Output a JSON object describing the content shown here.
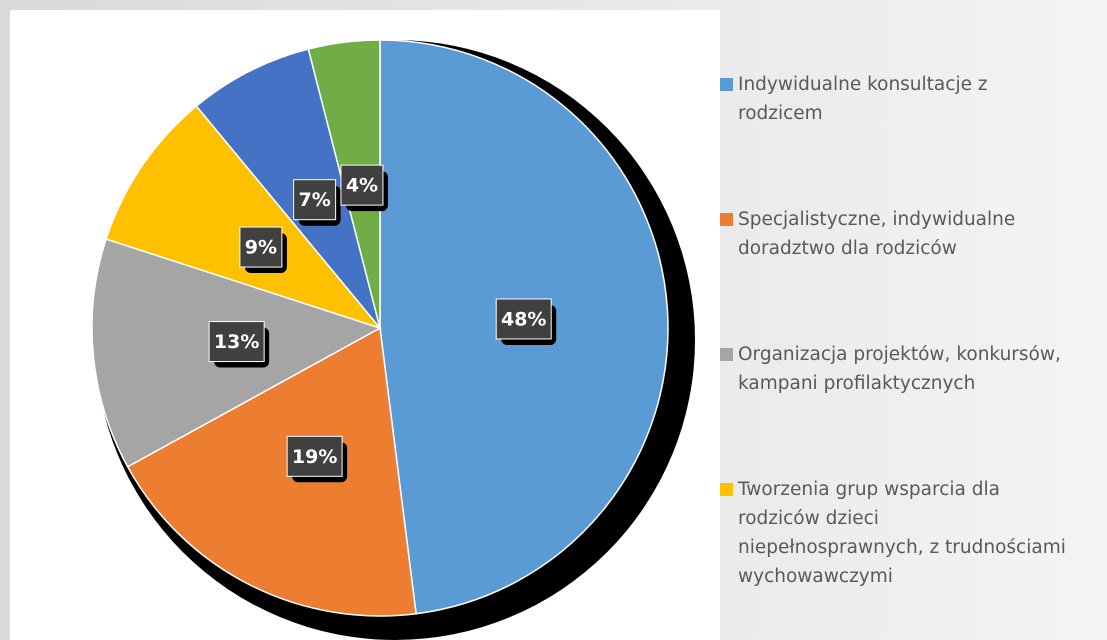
{
  "chart_data": {
    "type": "pie",
    "categories": [
      "Indywidualne konsultacje z rodzicem",
      "Specjalistyczne, indywidualne doradztwo dla rodziców",
      "Organizacja projektów, konkursów, kampani profilaktycznych",
      "Tworzenia grup wsparcia dla rodziców dzieci niepełnosprawnych, z trudnościami wychowawczymi",
      null,
      null
    ],
    "values": [
      48,
      19,
      13,
      9,
      7,
      4
    ],
    "value_labels": [
      "48%",
      "19%",
      "13%",
      "9%",
      "7%",
      "4%"
    ],
    "colors": [
      "#5b9bd5",
      "#ed7d31",
      "#a5a5a5",
      "#ffc000",
      "#4472c4",
      "#70ad47"
    ]
  }
}
